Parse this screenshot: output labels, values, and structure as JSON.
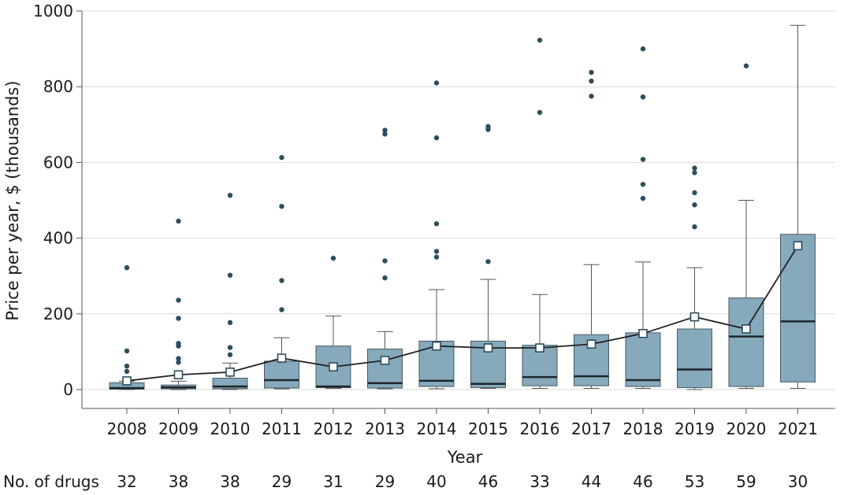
{
  "chart_data": {
    "type": "box",
    "title": "",
    "xlabel": "Year",
    "ylabel": "Price per year, $ (thousands)",
    "ylim": [
      0,
      1000
    ],
    "yticks": [
      0,
      200,
      400,
      600,
      800,
      1000
    ],
    "grid": true,
    "categories": [
      "2008",
      "2009",
      "2010",
      "2011",
      "2012",
      "2013",
      "2014",
      "2015",
      "2016",
      "2017",
      "2018",
      "2019",
      "2020",
      "2021"
    ],
    "counts_label": "No. of drugs",
    "counts": [
      32,
      38,
      38,
      29,
      31,
      29,
      40,
      46,
      33,
      44,
      46,
      53,
      59,
      30
    ],
    "box_series": [
      {
        "year": "2008",
        "whisker_low": 0,
        "q1": 1,
        "median": 4,
        "q3": 18,
        "whisker_high": 22,
        "outliers": [
          48,
          62,
          102,
          322
        ]
      },
      {
        "year": "2009",
        "whisker_low": 0,
        "q1": 2,
        "median": 6,
        "q3": 12,
        "whisker_high": 22,
        "outliers": [
          72,
          82,
          115,
          122,
          188,
          236,
          445
        ]
      },
      {
        "year": "2010",
        "whisker_low": 0,
        "q1": 2,
        "median": 8,
        "q3": 30,
        "whisker_high": 70,
        "outliers": [
          92,
          111,
          177,
          302,
          513
        ]
      },
      {
        "year": "2011",
        "whisker_low": 2,
        "q1": 4,
        "median": 25,
        "q3": 75,
        "whisker_high": 137,
        "outliers": [
          211,
          288,
          484,
          613
        ]
      },
      {
        "year": "2012",
        "whisker_low": 3,
        "q1": 5,
        "median": 8,
        "q3": 115,
        "whisker_high": 194,
        "outliers": [
          347
        ]
      },
      {
        "year": "2013",
        "whisker_low": 2,
        "q1": 4,
        "median": 17,
        "q3": 107,
        "whisker_high": 153,
        "outliers": [
          295,
          340,
          675,
          685
        ]
      },
      {
        "year": "2014",
        "whisker_low": 2,
        "q1": 8,
        "median": 23,
        "q3": 128,
        "whisker_high": 264,
        "outliers": [
          350,
          365,
          438,
          665,
          810
        ]
      },
      {
        "year": "2015",
        "whisker_low": 3,
        "q1": 5,
        "median": 15,
        "q3": 128,
        "whisker_high": 291,
        "outliers": [
          338,
          687,
          695
        ]
      },
      {
        "year": "2016",
        "whisker_low": 3,
        "q1": 10,
        "median": 33,
        "q3": 117,
        "whisker_high": 251,
        "outliers": [
          732,
          923
        ]
      },
      {
        "year": "2017",
        "whisker_low": 3,
        "q1": 10,
        "median": 35,
        "q3": 145,
        "whisker_high": 330,
        "outliers": [
          775,
          815,
          838
        ]
      },
      {
        "year": "2018",
        "whisker_low": 3,
        "q1": 8,
        "median": 25,
        "q3": 150,
        "whisker_high": 337,
        "outliers": [
          505,
          542,
          608,
          773,
          900
        ]
      },
      {
        "year": "2019",
        "whisker_low": 0,
        "q1": 5,
        "median": 53,
        "q3": 160,
        "whisker_high": 322,
        "outliers": [
          430,
          488,
          520,
          573,
          585
        ]
      },
      {
        "year": "2020",
        "whisker_low": 3,
        "q1": 8,
        "median": 140,
        "q3": 242,
        "whisker_high": 500,
        "outliers": [
          855
        ]
      },
      {
        "year": "2021",
        "whisker_low": 3,
        "q1": 20,
        "median": 180,
        "q3": 410,
        "whisker_high": 962,
        "outliers": []
      }
    ],
    "mean_series": {
      "name": "Mean",
      "values": [
        23,
        39,
        46,
        83,
        60,
        77,
        115,
        110,
        110,
        120,
        148,
        192,
        160,
        380
      ]
    },
    "colors": {
      "box_fill": "#86a9bb",
      "box_stroke": "#4a5a64",
      "median": "#1c262c",
      "whisker": "#555555",
      "outlier": "#2d4d5b",
      "mean_line": "#222222",
      "mean_marker_fill": "#ffffff",
      "mean_marker_stroke": "#2d4d5b",
      "grid": "#d9d9d9",
      "axis": "#555555"
    }
  }
}
